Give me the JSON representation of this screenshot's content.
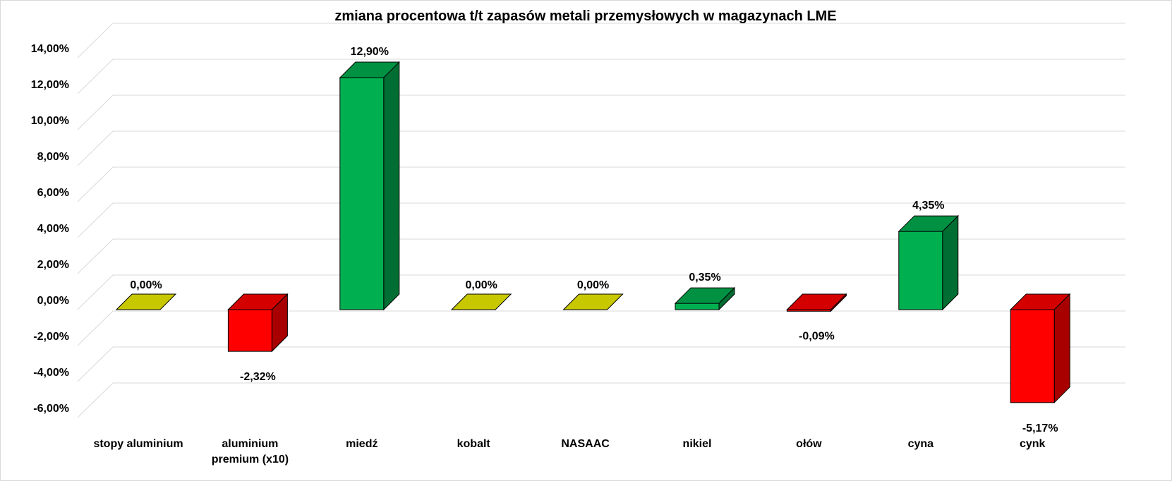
{
  "chart_data": {
    "type": "bar",
    "title": "zmiana procentowa t/t zapasów metali przemysłowych w magazynach LME",
    "xlabel": "",
    "ylabel": "",
    "ylim": [
      -6,
      14
    ],
    "y_ticks": [
      "-6,00%",
      "-4,00%",
      "-2,00%",
      "0,00%",
      "2,00%",
      "4,00%",
      "6,00%",
      "8,00%",
      "10,00%",
      "12,00%",
      "14,00%"
    ],
    "grid": true,
    "style": "3d-column",
    "categories": [
      [
        "stopy aluminium"
      ],
      [
        "aluminium",
        "premium (x10)"
      ],
      [
        "miedź"
      ],
      [
        "kobalt"
      ],
      [
        "NASAAC"
      ],
      [
        "nikiel"
      ],
      [
        "ołów"
      ],
      [
        "cyna"
      ],
      [
        "cynk"
      ]
    ],
    "values": [
      0.0,
      -2.32,
      12.9,
      0.0,
      0.0,
      0.35,
      -0.09,
      4.35,
      -5.17
    ],
    "data_labels": [
      "0,00%",
      "-2,32%",
      "12,90%",
      "0,00%",
      "0,00%",
      "0,35%",
      "-0,09%",
      "4,35%",
      "-5,17%"
    ],
    "colors": {
      "positive": {
        "front": "#00b050",
        "top": "#009143",
        "side": "#006e32"
      },
      "negative": {
        "front": "#ff0000",
        "top": "#d40000",
        "side": "#a80000"
      },
      "zero": {
        "front": "#c8c800",
        "top": "#c8c800",
        "side": "#a3a300"
      },
      "grid": "#d9d9d9",
      "edge": "#000000"
    }
  }
}
